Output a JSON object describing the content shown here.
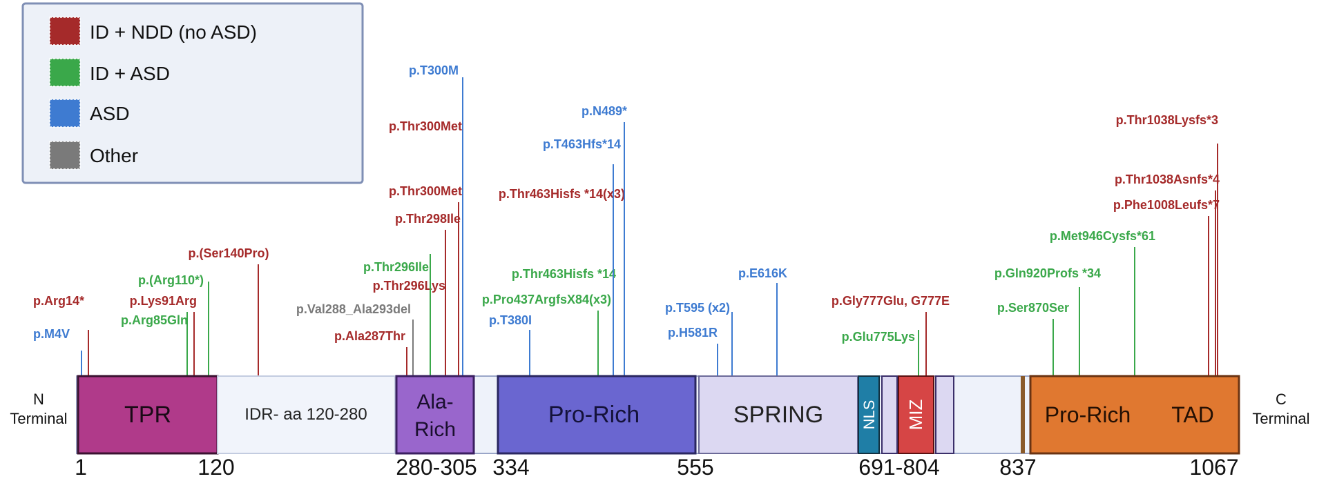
{
  "colors": {
    "ID_NDD": "#a52a2a",
    "ID_ASD": "#3aa84a",
    "ASD": "#3e7bd1",
    "Other": "#7a7a7a"
  },
  "legend": [
    {
      "key": "ID_NDD",
      "label": "ID + NDD (no ASD)"
    },
    {
      "key": "ID_ASD",
      "label": "ID + ASD"
    },
    {
      "key": "ASD",
      "label": "ASD"
    },
    {
      "key": "Other",
      "label": "Other"
    }
  ],
  "termini": {
    "n_line1": "N",
    "n_line2": "Terminal",
    "c_line1": "C",
    "c_line2": "Terminal"
  },
  "domains": [
    {
      "id": "tpr",
      "label": "TPR",
      "fill": "#b03a8a"
    },
    {
      "id": "idr",
      "label": "IDR- aa 120-280",
      "fill": "#f1f4fb"
    },
    {
      "id": "ala",
      "label1": "Ala-",
      "label2": "Rich",
      "fill": "#9966cc"
    },
    {
      "id": "pro1",
      "label": "Pro-Rich",
      "fill": "#6a66d0"
    },
    {
      "id": "spring",
      "label": "SPRING",
      "fill": "#dcd8f2"
    },
    {
      "id": "nls",
      "label": "NLS",
      "fill": "#1f7ea6"
    },
    {
      "id": "miz",
      "label": "MIZ",
      "fill": "#d64545"
    },
    {
      "id": "prorich_tad",
      "label1": "Pro-Rich",
      "label2": "TAD",
      "fill": "#e07830"
    }
  ],
  "positions": [
    "1",
    "120",
    "280-305",
    "334",
    "555",
    "691-804",
    "837",
    "1067"
  ],
  "variants": [
    {
      "label": "p.M4V",
      "cat": "ASD"
    },
    {
      "label": "p.Arg14*",
      "cat": "ID_NDD"
    },
    {
      "label": "p.Arg85Gln",
      "cat": "ID_ASD"
    },
    {
      "label": "p.Lys91Arg",
      "cat": "ID_NDD"
    },
    {
      "label": "p.(Arg110*)",
      "cat": "ID_ASD"
    },
    {
      "label": "p.(Ser140Pro)",
      "cat": "ID_NDD"
    },
    {
      "label": "p.Ala287Thr",
      "cat": "ID_NDD"
    },
    {
      "label": "p.Val288_Ala293del",
      "cat": "Other"
    },
    {
      "label": "p.Thr296Lys",
      "cat": "ID_NDD"
    },
    {
      "label": "p.Thr296Ile",
      "cat": "ID_ASD"
    },
    {
      "label": "p.Thr298Ile",
      "cat": "ID_NDD"
    },
    {
      "label": "p.Thr300Met",
      "cat": "ID_NDD"
    },
    {
      "label": "p.Thr300Met",
      "cat": "ID_NDD"
    },
    {
      "label": "p.T300M",
      "cat": "ASD"
    },
    {
      "label": "p.T380I",
      "cat": "ASD"
    },
    {
      "label": "p.Pro437ArgfsX84(x3)",
      "cat": "ID_ASD"
    },
    {
      "label": "p.Thr463Hisfs *14",
      "cat": "ID_ASD"
    },
    {
      "label": "p.Thr463Hisfs *14(x3)",
      "cat": "ID_NDD"
    },
    {
      "label": "p.T463Hfs*14",
      "cat": "ASD"
    },
    {
      "label": "p.N489*",
      "cat": "ASD"
    },
    {
      "label": "p.H581R",
      "cat": "ASD"
    },
    {
      "label": "p.T595 (x2)",
      "cat": "ASD"
    },
    {
      "label": "p.E616K",
      "cat": "ASD"
    },
    {
      "label": "p.Glu775Lys",
      "cat": "ID_ASD"
    },
    {
      "label": "p.Gly777Glu, G777E",
      "cat": "ID_NDD"
    },
    {
      "label": "p.Ser870Ser",
      "cat": "ID_ASD"
    },
    {
      "label": "p.Gln920Profs *34",
      "cat": "ID_ASD"
    },
    {
      "label": "p.Met946Cysfs*61",
      "cat": "ID_ASD"
    },
    {
      "label": "p.Phe1008Leufs*7",
      "cat": "ID_NDD"
    },
    {
      "label": "p.Thr1038Asnfs*4",
      "cat": "ID_NDD"
    },
    {
      "label": "p.Thr1038Lysfs*3",
      "cat": "ID_NDD"
    }
  ]
}
